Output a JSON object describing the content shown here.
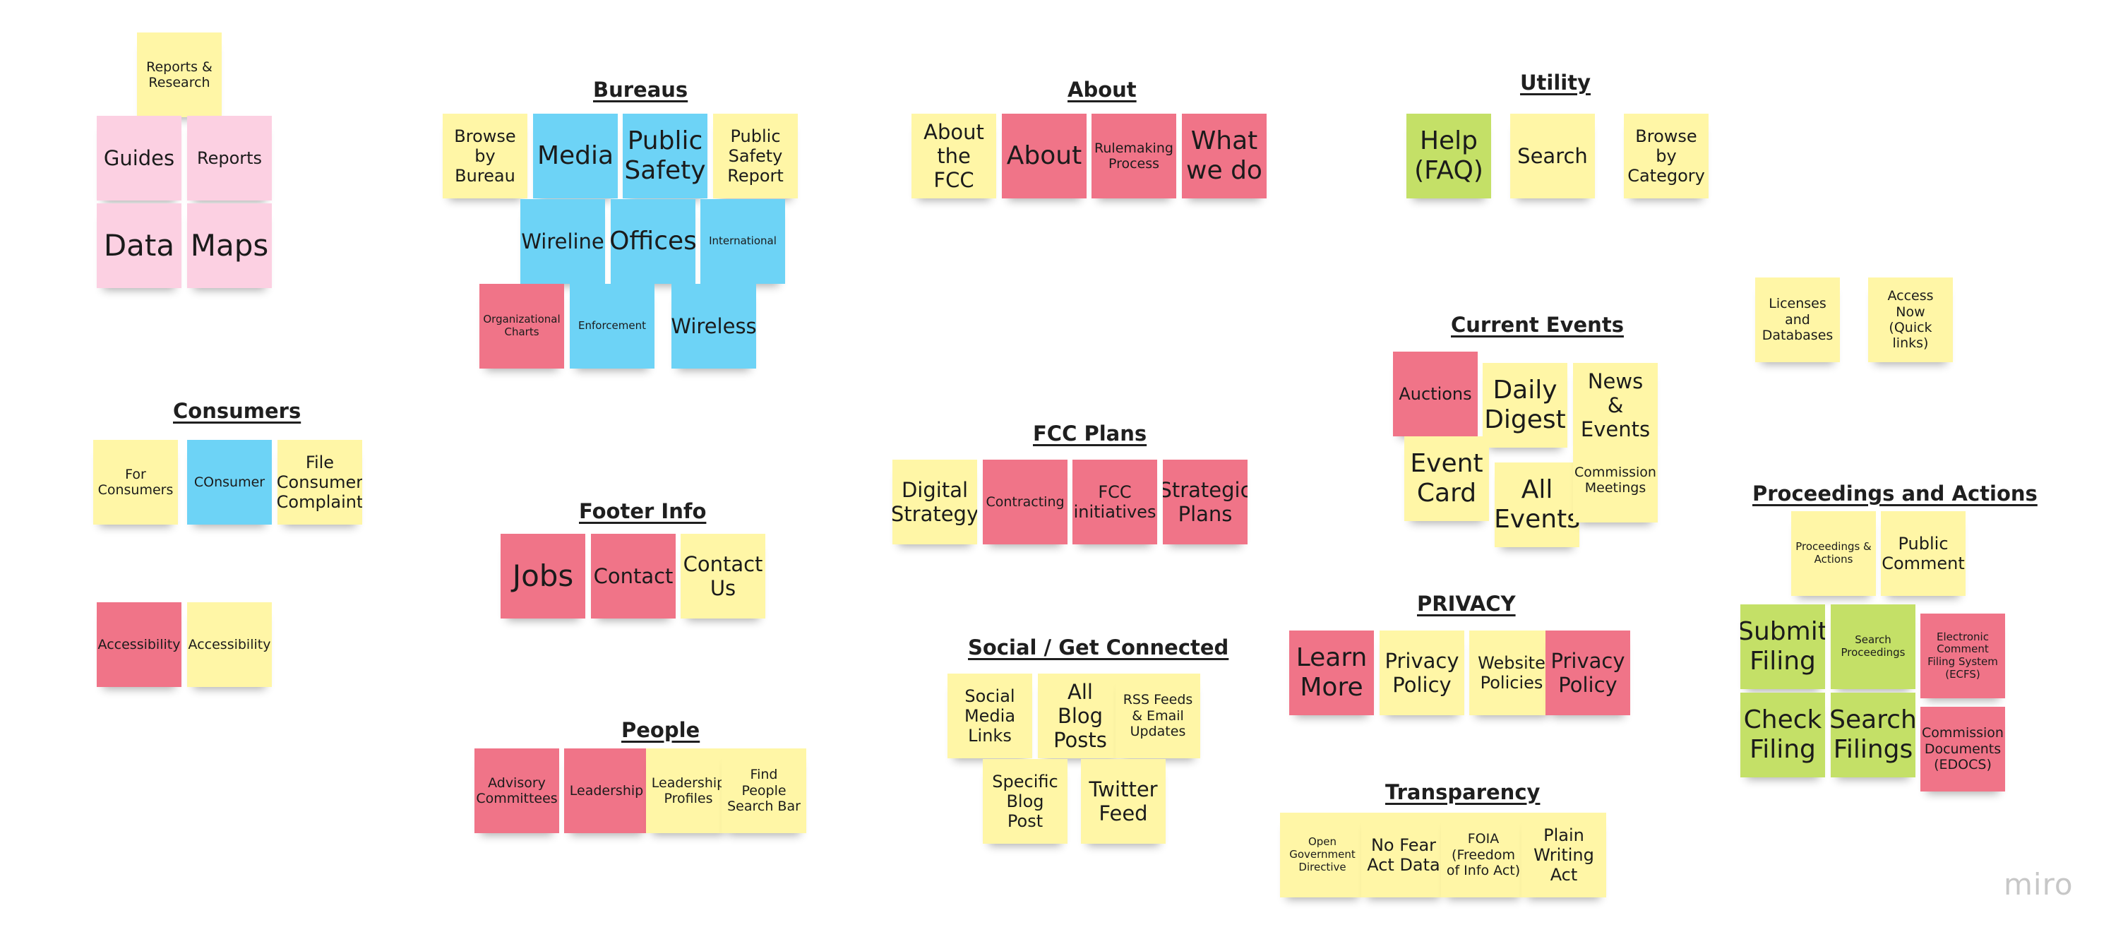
{
  "board": {
    "logo": "miro",
    "headings": {
      "bureaus": "Bureaus",
      "about": "About",
      "utility": "Utility",
      "consumers": "Consumers",
      "current_events": "Current Events",
      "fcc_plans": "FCC Plans",
      "footer_info": "Footer Info",
      "proceedings": "Proceedings and Actions",
      "privacy": "PRIVACY",
      "social": "Social / Get Connected",
      "people": "People",
      "transparency": "Transparency"
    },
    "notes": {
      "reports_research": "Reports & Research",
      "guides": "Guides",
      "reports": "Reports",
      "data": "Data",
      "maps": "Maps",
      "browse_by_bureau": "Browse by Bureau",
      "media": "Media",
      "public_safety": "Public Safety",
      "public_safety_report": "Public Safety Report",
      "wireline": "Wireline",
      "offices": "Offices",
      "international": "International",
      "org_charts": "Organizational Charts",
      "enforcement": "Enforcement",
      "wireless": "Wireless",
      "about_the_fcc": "About the FCC",
      "about": "About",
      "rulemaking_process": "Rulemaking Process",
      "what_we_do": "What we do",
      "help_faq": "Help (FAQ)",
      "search": "Search",
      "browse_by_category": "Browse by Category",
      "licenses_databases": "Licenses and Databases",
      "access_now": "Access Now (Quick links)",
      "for_consumers": "For Consumers",
      "consumer": "COnsumer",
      "file_consumer_complaint": "File Consumer Complaint",
      "accessibility_red": "Accessibility",
      "accessibility_yellow": "Accessibility",
      "auctions": "Auctions",
      "daily_digest": "Daily Digest",
      "news_events": "News & Events",
      "event_card": "Event Card",
      "all_events": "All Events",
      "commission_meetings": "Commission Meetings",
      "digital_strategy": "Digital Strategy",
      "contracting": "Contracting",
      "fcc_initiatives": "FCC initiatives",
      "strategic_plans": "Strategic Plans",
      "jobs": "Jobs",
      "contact": "Contact",
      "contact_us": "Contact Us",
      "proceedings_actions": "Proceedings & Actions",
      "public_comment": "Public Comment",
      "submit_filing": "Submit Filing",
      "search_proceedings": "Search Proceedings",
      "ecfs": "Electronic Comment Filing System (ECFS)",
      "check_filing": "Check Filing",
      "search_filings": "Search Filings",
      "edocs": "Commission Documents (EDOCS)",
      "learn_more": "Learn More",
      "privacy_policy_yellow": "Privacy Policy",
      "website_policies": "Website Policies",
      "privacy_policy_red": "Privacy Policy",
      "social_media_links": "Social Media Links",
      "all_blog_posts": "All Blog Posts",
      "rss_feeds": "RSS Feeds & Email Updates",
      "specific_blog_post": "Specific Blog Post",
      "twitter_feed": "Twitter Feed",
      "advisory_committees": "Advisory Committees",
      "leadership": "Leadership",
      "leadership_profiles": "Leadership Profiles",
      "find_people": "Find People Search Bar",
      "open_gov_directive": "Open Government Directive",
      "no_fear_act": "No Fear Act Data",
      "foia": "FOIA (Freedom of Info Act)",
      "plain_writing_act": "Plain Writing Act"
    },
    "colors": {
      "yellow": "#fff6a6",
      "pink": "#fcd0e2",
      "red": "#f07488",
      "blue": "#6dd3f6",
      "green": "#c4e067"
    }
  }
}
